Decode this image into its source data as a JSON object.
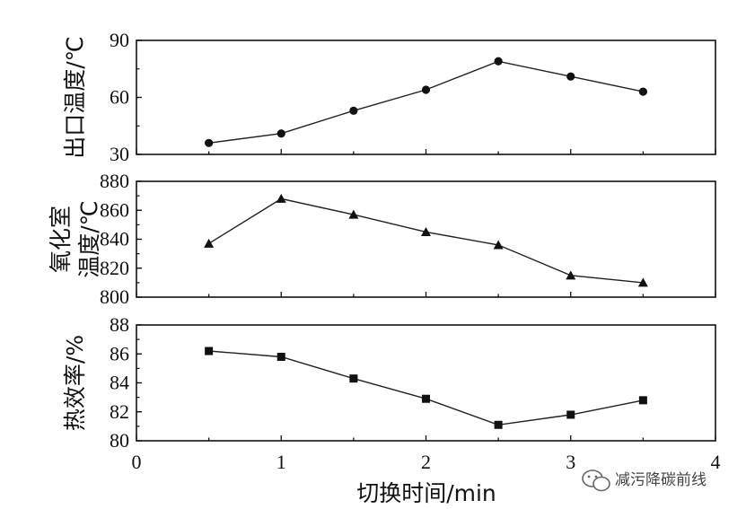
{
  "chart_data": [
    {
      "type": "line",
      "ylabel": "出口温度/℃",
      "ylim": [
        30,
        90
      ],
      "yticks": [
        "30",
        "60",
        "90"
      ],
      "xlim": [
        0,
        4
      ],
      "marker": "circle",
      "x": [
        0.5,
        1.0,
        1.5,
        2.0,
        2.5,
        3.0,
        3.5
      ],
      "values": [
        36,
        41,
        53,
        64,
        79,
        71,
        63
      ]
    },
    {
      "type": "line",
      "ylabel": "氧化室温度/℃",
      "ylabel_lines": [
        "氧化室",
        "温度/℃"
      ],
      "ylim": [
        800,
        880
      ],
      "yticks": [
        "800",
        "820",
        "840",
        "860",
        "880"
      ],
      "xlim": [
        0,
        4
      ],
      "marker": "triangle",
      "x": [
        0.5,
        1.0,
        1.5,
        2.0,
        2.5,
        3.0,
        3.5
      ],
      "values": [
        837,
        868,
        857,
        845,
        836,
        815,
        810
      ]
    },
    {
      "type": "line",
      "ylabel": "热效率/%",
      "ylim": [
        80,
        88
      ],
      "yticks": [
        "80",
        "82",
        "84",
        "86",
        "88"
      ],
      "xlim": [
        0,
        4
      ],
      "marker": "square",
      "x": [
        0.5,
        1.0,
        1.5,
        2.0,
        2.5,
        3.0,
        3.5
      ],
      "values": [
        86.2,
        85.8,
        84.3,
        82.9,
        81.1,
        81.8,
        82.8
      ]
    }
  ],
  "xaxis": {
    "xlabel": "切换时间/min",
    "ticks": [
      "0",
      "1",
      "2",
      "3",
      "4"
    ]
  },
  "watermark": {
    "text": "减污降碳前线",
    "icon": "wechat-icon"
  }
}
